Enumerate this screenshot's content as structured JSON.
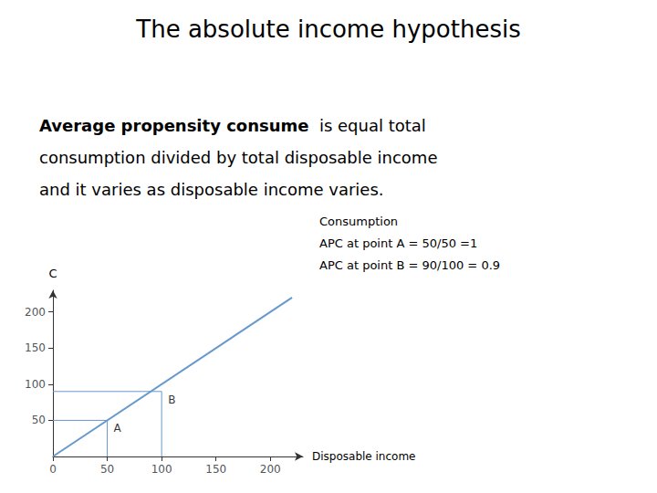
{
  "chart_data": {
    "type": "line",
    "title": "The absolute income hypothesis",
    "subtitle": {
      "bold": "Average propensity consume",
      "lines": [
        "is equal total",
        "consumption divided by total disposable income",
        "and it varies as disposable income varies."
      ]
    },
    "annotations": [
      "Consumption",
      "APC at point A = 50/50 =1",
      "APC at point B = 90/100 = 0.9"
    ],
    "x": [
      0,
      220
    ],
    "values": [
      0,
      220
    ],
    "color": "#6699CC",
    "points": [
      {
        "label": "A",
        "x": 50,
        "y": 50
      },
      {
        "label": "B",
        "x": 100,
        "y": 90
      }
    ],
    "xlabel": "Disposable income",
    "ylabel": "C",
    "xlim": [
      0,
      230
    ],
    "ylim": [
      0,
      230
    ],
    "xticks": [
      0,
      50,
      100,
      150,
      200
    ],
    "yticks": [
      50,
      100,
      150,
      200
    ],
    "grid": false
  }
}
